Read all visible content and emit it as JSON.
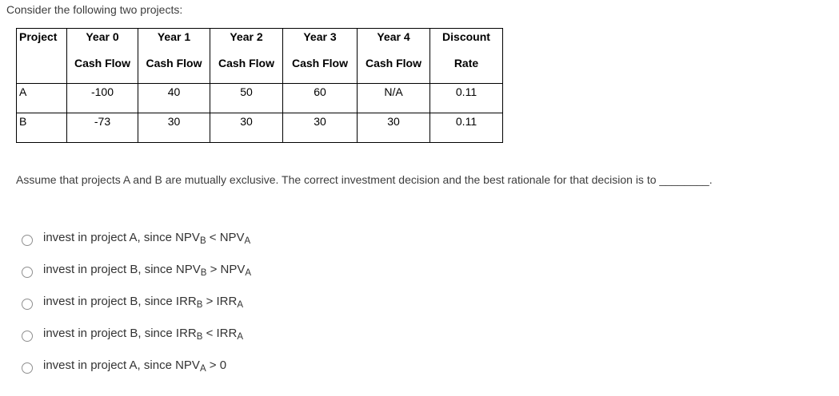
{
  "intro": "Consider the following two projects:",
  "table": {
    "headers": [
      {
        "line1": "Project",
        "line2": ""
      },
      {
        "line1": "Year 0",
        "line2": "Cash Flow"
      },
      {
        "line1": "Year 1",
        "line2": "Cash Flow"
      },
      {
        "line1": "Year 2",
        "line2": "Cash Flow"
      },
      {
        "line1": "Year 3",
        "line2": "Cash Flow"
      },
      {
        "line1": "Year 4",
        "line2": "Cash Flow"
      },
      {
        "line1": "Discount",
        "line2": "Rate"
      }
    ],
    "rows": [
      {
        "cells": [
          "A",
          "-100",
          "40",
          "50",
          "60",
          "N/A",
          "0.11"
        ]
      },
      {
        "cells": [
          "B",
          "-73",
          "30",
          "30",
          "30",
          "30",
          "0.11"
        ]
      }
    ]
  },
  "question": {
    "text": "Assume that projects A and B are mutually exclusive. The correct investment decision and the best rationale for that decision is to ",
    "blank": "________",
    "period": "."
  },
  "options": [
    {
      "pre": "invest in project A, since NPV",
      "sub1": "B",
      "mid": " < NPV",
      "sub2": "A"
    },
    {
      "pre": "invest in project B, since NPV",
      "sub1": "B",
      "mid": " > NPV",
      "sub2": "A"
    },
    {
      "pre": "invest in project B, since IRR",
      "sub1": "B",
      "mid": " > IRR",
      "sub2": "A"
    },
    {
      "pre": "invest in project B, since IRR",
      "sub1": "B",
      "mid": " < IRR",
      "sub2": "A"
    },
    {
      "pre": "invest in project A, since NPV",
      "sub1": "A",
      "mid": " > 0",
      "sub2": ""
    }
  ]
}
